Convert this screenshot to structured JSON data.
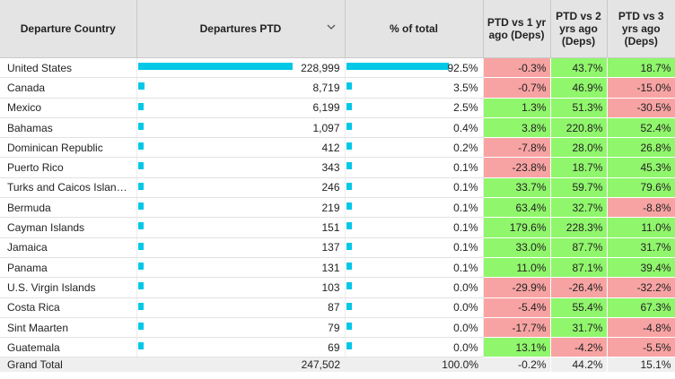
{
  "headers": {
    "country": "Departure Country",
    "departures": "Departures PTD",
    "pct": "% of total",
    "vs1": "PTD vs 1 yr ago (Deps)",
    "vs2": "PTD vs 2 yrs ago (Deps)",
    "vs3": "PTD vs 3 yrs ago (Deps)"
  },
  "sort_icon": "chevron-down-icon",
  "colors": {
    "bar": "#00c8e6",
    "positive": "#90f66c",
    "negative": "#f8a3a3",
    "header_bg": "#e4e4e4"
  },
  "rows": [
    {
      "country": "United States",
      "departures": "228,999",
      "dep_value": 228999,
      "pct": "92.5%",
      "pct_value": 92.5,
      "vs1": "-0.3%",
      "vs2": "43.7%",
      "vs3": "18.7%"
    },
    {
      "country": "Canada",
      "departures": "8,719",
      "dep_value": 8719,
      "pct": "3.5%",
      "pct_value": 3.5,
      "vs1": "-0.7%",
      "vs2": "46.9%",
      "vs3": "-15.0%"
    },
    {
      "country": "Mexico",
      "departures": "6,199",
      "dep_value": 6199,
      "pct": "2.5%",
      "pct_value": 2.5,
      "vs1": "1.3%",
      "vs2": "51.3%",
      "vs3": "-30.5%"
    },
    {
      "country": "Bahamas",
      "departures": "1,097",
      "dep_value": 1097,
      "pct": "0.4%",
      "pct_value": 0.4,
      "vs1": "3.8%",
      "vs2": "220.8%",
      "vs3": "52.4%"
    },
    {
      "country": "Dominican Republic",
      "departures": "412",
      "dep_value": 412,
      "pct": "0.2%",
      "pct_value": 0.2,
      "vs1": "-7.8%",
      "vs2": "28.0%",
      "vs3": "26.8%"
    },
    {
      "country": "Puerto Rico",
      "departures": "343",
      "dep_value": 343,
      "pct": "0.1%",
      "pct_value": 0.1,
      "vs1": "-23.8%",
      "vs2": "18.7%",
      "vs3": "45.3%"
    },
    {
      "country": "Turks and Caicos Islan…",
      "departures": "246",
      "dep_value": 246,
      "pct": "0.1%",
      "pct_value": 0.1,
      "vs1": "33.7%",
      "vs2": "59.7%",
      "vs3": "79.6%"
    },
    {
      "country": "Bermuda",
      "departures": "219",
      "dep_value": 219,
      "pct": "0.1%",
      "pct_value": 0.1,
      "vs1": "63.4%",
      "vs2": "32.7%",
      "vs3": "-8.8%"
    },
    {
      "country": "Cayman Islands",
      "departures": "151",
      "dep_value": 151,
      "pct": "0.1%",
      "pct_value": 0.1,
      "vs1": "179.6%",
      "vs2": "228.3%",
      "vs3": "11.0%"
    },
    {
      "country": "Jamaica",
      "departures": "137",
      "dep_value": 137,
      "pct": "0.1%",
      "pct_value": 0.1,
      "vs1": "33.0%",
      "vs2": "87.7%",
      "vs3": "31.7%"
    },
    {
      "country": "Panama",
      "departures": "131",
      "dep_value": 131,
      "pct": "0.1%",
      "pct_value": 0.1,
      "vs1": "11.0%",
      "vs2": "87.1%",
      "vs3": "39.4%"
    },
    {
      "country": "U.S. Virgin Islands",
      "departures": "103",
      "dep_value": 103,
      "pct": "0.0%",
      "pct_value": 0.0,
      "vs1": "-29.9%",
      "vs2": "-26.4%",
      "vs3": "-32.2%"
    },
    {
      "country": "Costa Rica",
      "departures": "87",
      "dep_value": 87,
      "pct": "0.0%",
      "pct_value": 0.0,
      "vs1": "-5.4%",
      "vs2": "55.4%",
      "vs3": "67.3%"
    },
    {
      "country": "Sint Maarten",
      "departures": "79",
      "dep_value": 79,
      "pct": "0.0%",
      "pct_value": 0.0,
      "vs1": "-17.7%",
      "vs2": "31.7%",
      "vs3": "-4.8%"
    },
    {
      "country": "Guatemala",
      "departures": "69",
      "dep_value": 69,
      "pct": "0.0%",
      "pct_value": 0.0,
      "vs1": "13.1%",
      "vs2": "-4.2%",
      "vs3": "-5.5%"
    }
  ],
  "total": {
    "label": "Grand Total",
    "departures": "247,502",
    "pct": "100.0%",
    "vs1": "-0.2%",
    "vs2": "44.2%",
    "vs3": "15.1%"
  }
}
